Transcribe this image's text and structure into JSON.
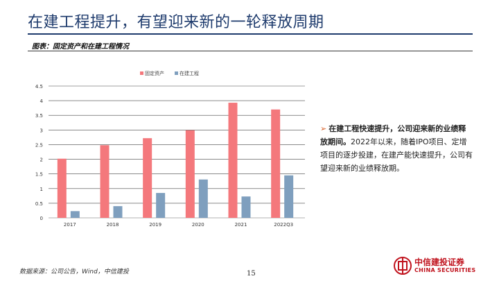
{
  "slide": {
    "title": "在建工程提升，有望迎来新的一轮释放周期",
    "caption": "图表：固定资产和在建工程情况",
    "source": "数据来源：公司公告，Wind，中信建投",
    "page_number": "15"
  },
  "note": {
    "bold_text": "在建工程快速提升，公司迎来新的业绩释放期间。",
    "body_text": "2022年以来，随着IPO项目、定增项目的逐步投建，在建产能快速提升，公司有望迎来新的业绩释放期。"
  },
  "logo": {
    "name_cn": "中信建投证券",
    "name_en": "CHINA SECURITIES"
  },
  "colors": {
    "title": "#1d3a6c",
    "fixed_assets": "#f4787c",
    "construction": "#7f9fbe",
    "brand_red": "#c0121d"
  },
  "chart_data": {
    "type": "bar",
    "categories": [
      "2017",
      "2018",
      "2019",
      "2020",
      "2021",
      "2022Q3"
    ],
    "series": [
      {
        "name": "固定资产",
        "values": [
          2.02,
          2.48,
          2.72,
          2.99,
          3.93,
          3.7
        ],
        "color": "#f4787c"
      },
      {
        "name": "在建工程",
        "values": [
          0.23,
          0.4,
          0.85,
          1.31,
          0.73,
          1.45
        ],
        "color": "#7f9fbe"
      }
    ],
    "ylim": [
      0,
      4.5
    ],
    "yticks": [
      "0",
      "0.5",
      "1",
      "1.5",
      "2",
      "2.5",
      "3",
      "3.5",
      "4",
      "4.5"
    ],
    "grid": true,
    "legend_position": "top-center",
    "title": "",
    "xlabel": "",
    "ylabel": ""
  }
}
